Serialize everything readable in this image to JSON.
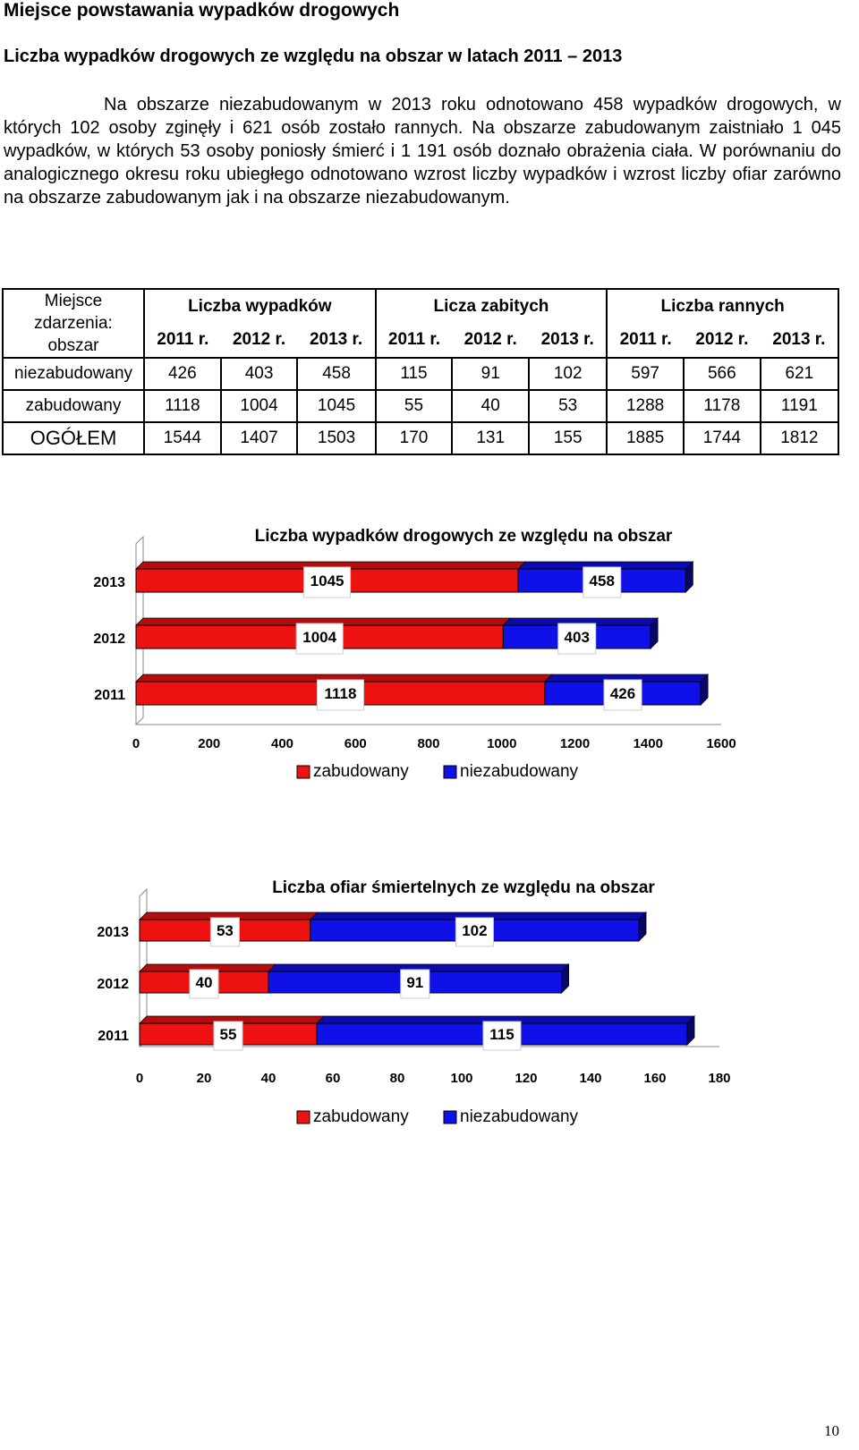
{
  "heading": "Miejsce powstawania wypadków drogowych",
  "subheading": "Liczba wypadków drogowych ze względu na obszar w latach 2011 – 2013",
  "paragraph": "Na obszarze niezabudowanym w 2013 roku odnotowano 458 wypadków drogowych, w których 102 osoby zginęły i 621 osób zostało rannych. Na obszarze zabudowanym zaistniało 1 045 wypadków, w których 53 osoby poniosły śmierć i 1 191 osób doznało obrażenia ciała. W porównaniu do analogicznego okresu roku ubiegłego odnotowano wzrost liczby wypadków i wzrost liczby ofiar zarówno na obszarze zabudowanym jak i na obszarze niezabudowanym.",
  "table": {
    "corner": [
      "Miejsce",
      "zdarzenia:",
      "obszar"
    ],
    "groups": [
      "Liczba wypadków",
      "Licza zabitych",
      "Liczba rannych"
    ],
    "years": [
      "2011 r.",
      "2012 r.",
      "2013 r.",
      "2011 r.",
      "2012 r.",
      "2013 r.",
      "2011 r.",
      "2012 r.",
      "2013 r."
    ],
    "rows": [
      {
        "label": "niezabudowany",
        "values": [
          "426",
          "403",
          "458",
          "115",
          "91",
          "102",
          "597",
          "566",
          "621"
        ]
      },
      {
        "label": "zabudowany",
        "values": [
          "1118",
          "1004",
          "1045",
          "55",
          "40",
          "53",
          "1288",
          "1178",
          "1191"
        ]
      },
      {
        "label": "OGÓŁEM",
        "values": [
          "1544",
          "1407",
          "1503",
          "170",
          "131",
          "155",
          "1885",
          "1744",
          "1812"
        ]
      }
    ]
  },
  "colors": {
    "zabudowany": "#ee1111",
    "niezabudowany": "#1010e8"
  },
  "chart_data": [
    {
      "type": "bar",
      "orientation": "horizontal",
      "stacked": true,
      "title": "Liczba wypadków drogowych ze względu na obszar",
      "categories": [
        "2013",
        "2012",
        "2011"
      ],
      "series": [
        {
          "name": "zabudowany",
          "values": [
            1045,
            1004,
            1118
          ]
        },
        {
          "name": "niezabudowany",
          "values": [
            458,
            403,
            426
          ]
        }
      ],
      "xlim": [
        0,
        1600
      ],
      "xticks": [
        0,
        200,
        400,
        600,
        800,
        1000,
        1200,
        1400,
        1600
      ],
      "legend": "bottom"
    },
    {
      "type": "bar",
      "orientation": "horizontal",
      "stacked": true,
      "title": "Liczba ofiar śmiertelnych ze względu na obszar",
      "categories": [
        "2013",
        "2012",
        "2011"
      ],
      "series": [
        {
          "name": "zabudowany",
          "values": [
            53,
            40,
            55
          ]
        },
        {
          "name": "niezabudowany",
          "values": [
            102,
            91,
            115
          ]
        }
      ],
      "xlim": [
        0,
        180
      ],
      "xticks": [
        0,
        20,
        40,
        60,
        80,
        100,
        120,
        140,
        160,
        180
      ],
      "legend": "bottom"
    }
  ],
  "page_number": "10"
}
